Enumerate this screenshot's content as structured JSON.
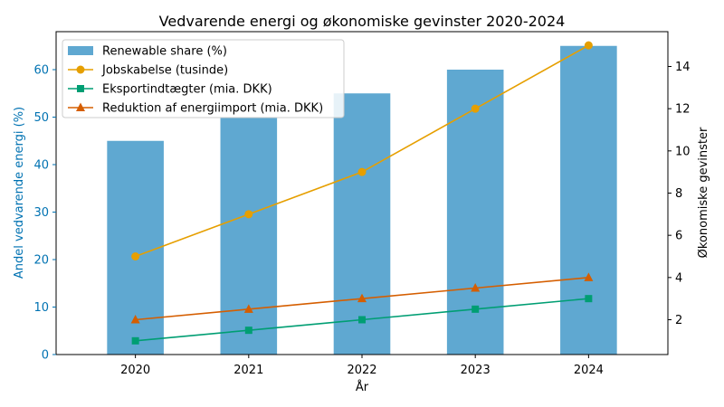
{
  "colors": {
    "bar": "#5fa8d1",
    "left_axis": "#0072b2",
    "jobs": "#e69f00",
    "export": "#009e73",
    "import": "#d55e00",
    "axis": "#000000"
  },
  "chart_data": {
    "type": "bar",
    "title": "Vedvarende energi og økonomiske gevinster 2020-2024",
    "xlabel": "År",
    "ylabel": "Andel vedvarende energi (%)",
    "ylabel_right": "Økonomiske gevinster",
    "categories": [
      "2020",
      "2021",
      "2022",
      "2023",
      "2024"
    ],
    "ylim": [
      0,
      68
    ],
    "yticks": [
      0,
      10,
      20,
      30,
      40,
      50,
      60
    ],
    "ylim_right": [
      0.35,
      15.65
    ],
    "yticks_right": [
      2,
      4,
      6,
      8,
      10,
      12,
      14
    ],
    "grid": false,
    "legend_position": "top-left",
    "bar_series": {
      "name": "Renewable share (%)",
      "values": [
        45,
        50,
        55,
        60,
        65
      ]
    },
    "line_series": [
      {
        "name": "Jobskabelse (tusinde)",
        "values": [
          5,
          7,
          9,
          12,
          15
        ],
        "color": "#e69f00",
        "marker": "circle"
      },
      {
        "name": "Eksportindtægter (mia. DKK)",
        "values": [
          1,
          1.5,
          2,
          2.5,
          3
        ],
        "color": "#009e73",
        "marker": "square"
      },
      {
        "name": "Reduktion af energiimport (mia. DKK)",
        "values": [
          2,
          2.5,
          3,
          3.5,
          4
        ],
        "color": "#d55e00",
        "marker": "triangle"
      }
    ]
  }
}
